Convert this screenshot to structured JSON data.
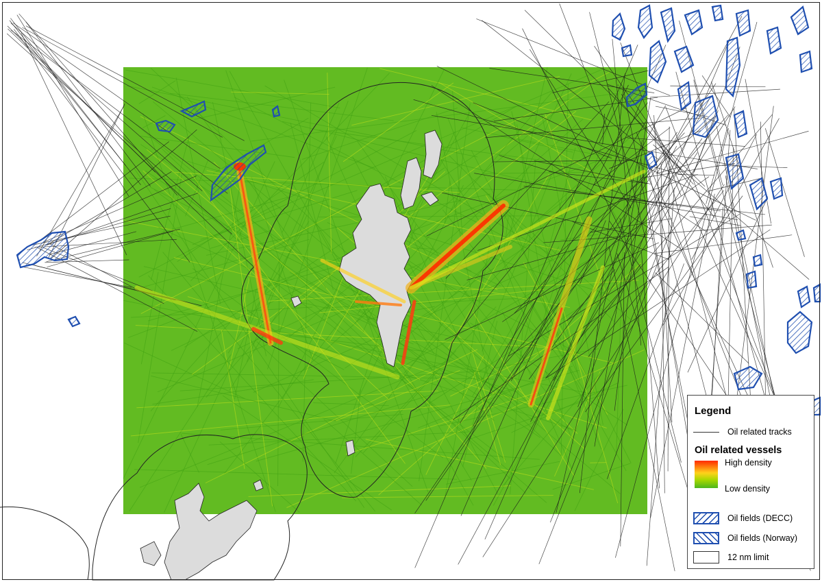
{
  "colors": {
    "track_black": "#1a1a1a",
    "density_low": "#4cb61e",
    "density_mid": "#d9e81a",
    "density_high": "#ff2a00",
    "oil_field": "#1f4fb0",
    "land": "#dcdcdc"
  },
  "legend": {
    "title": "Legend",
    "tracks_label": "Oil related tracks",
    "vessels_heading": "Oil related vessels",
    "high_density": "High density",
    "low_density": "Low density",
    "decc_label": "Oil fields (DECC)",
    "norway_label": "Oil fields (Norway)",
    "limit_label": "12 nm limit"
  }
}
